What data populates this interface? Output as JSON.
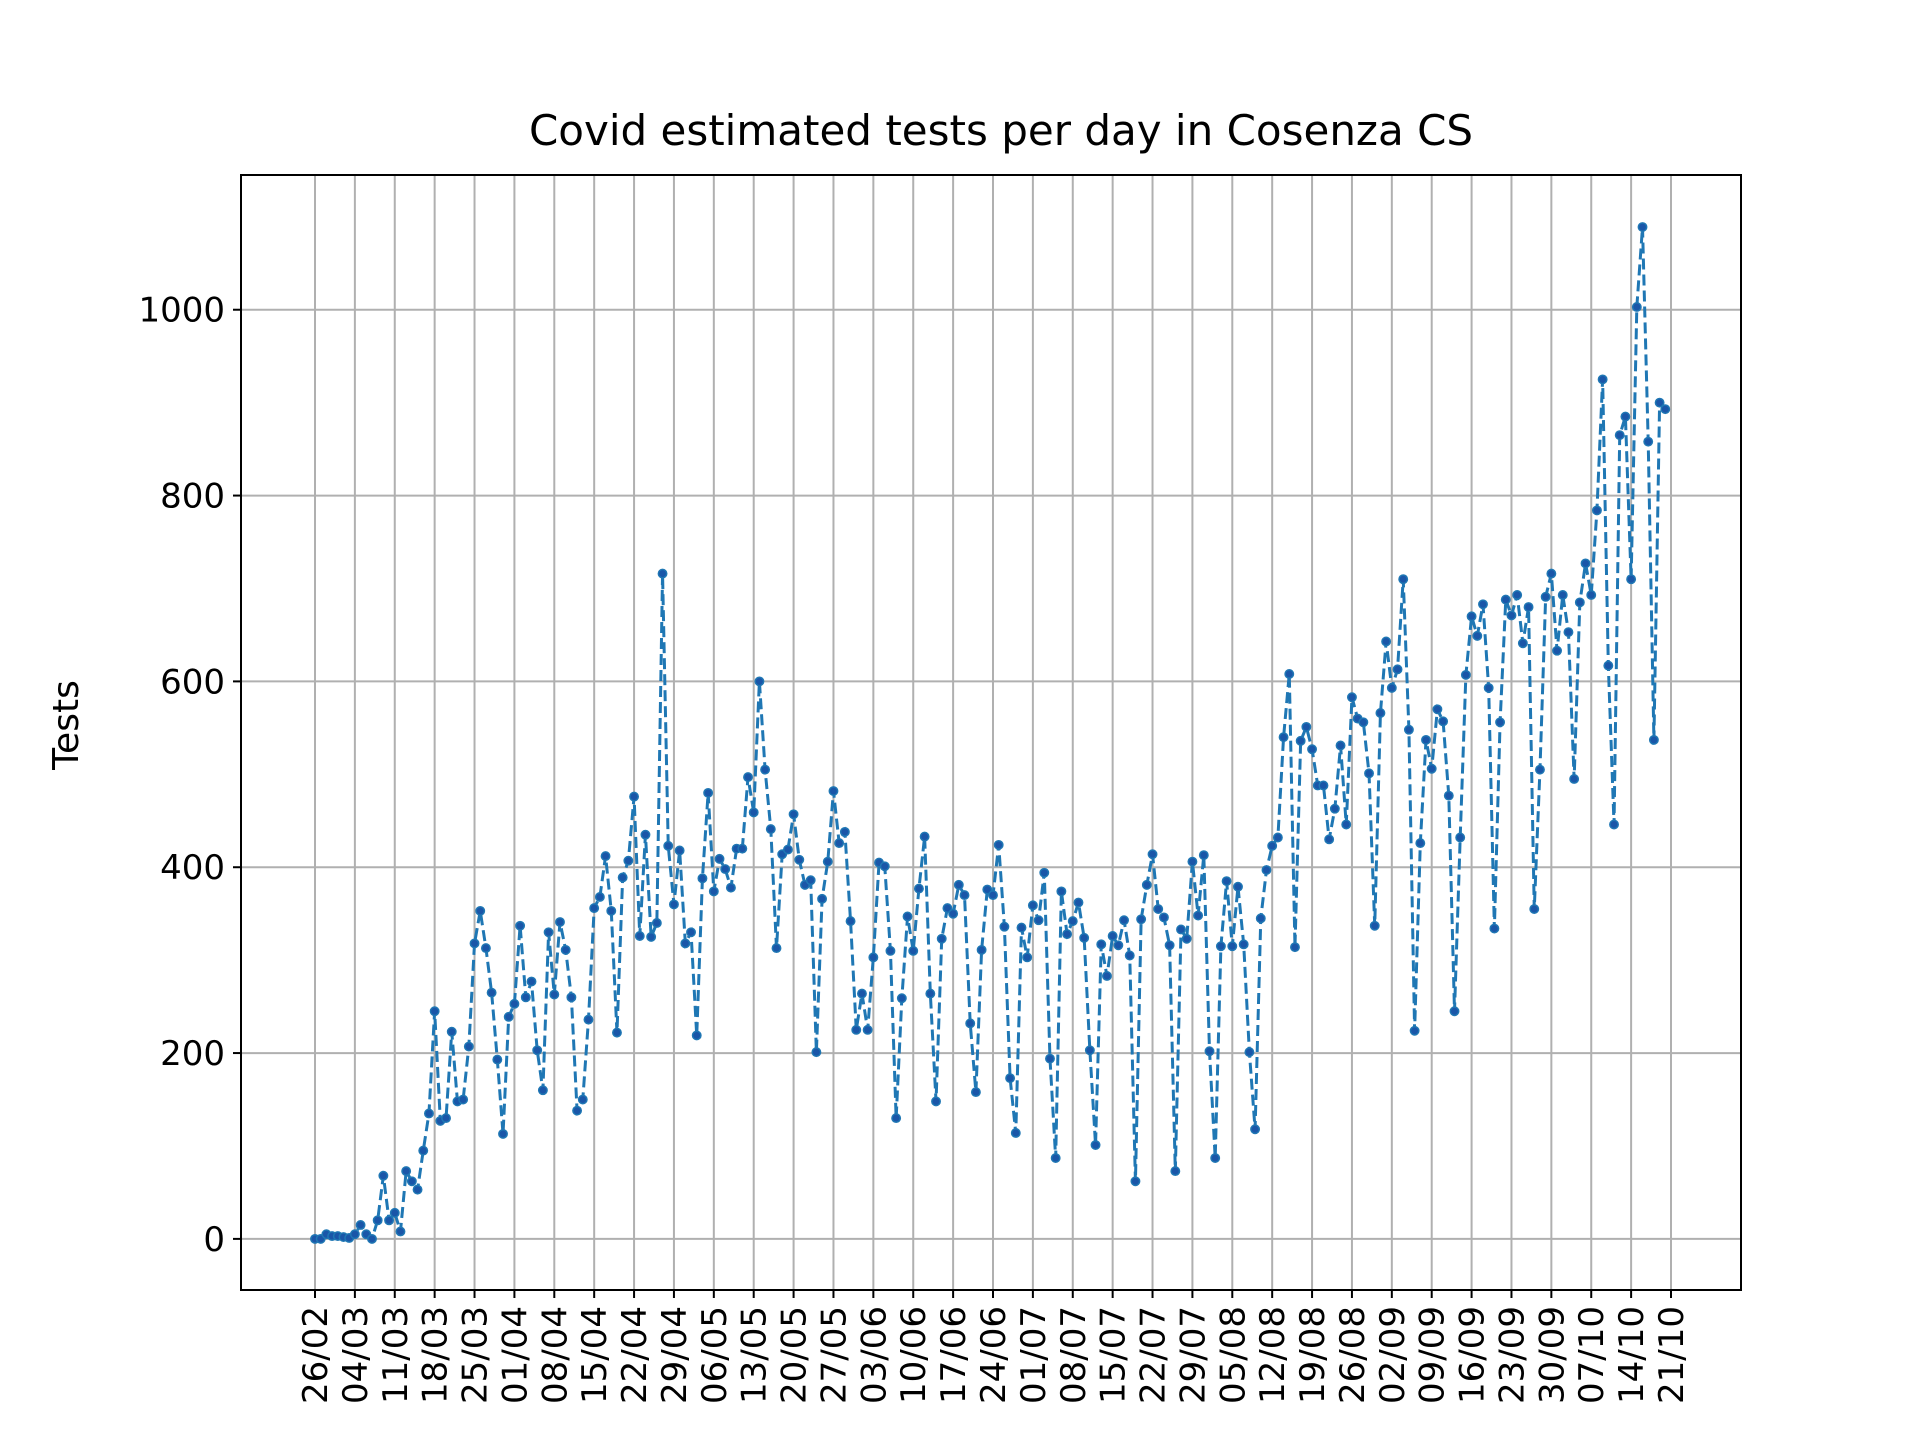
{
  "chart_data": {
    "type": "line",
    "title": "Covid estimated tests per day in Cosenza CS",
    "xlabel": "",
    "ylabel": "Tests",
    "ylim": [
      -55,
      1145
    ],
    "yticks": [
      0,
      200,
      400,
      600,
      800,
      1000
    ],
    "xticks": [
      "26/02",
      "04/03",
      "11/03",
      "18/03",
      "25/03",
      "01/04",
      "08/04",
      "15/04",
      "22/04",
      "29/04",
      "06/05",
      "13/05",
      "20/05",
      "27/05",
      "03/06",
      "10/06",
      "17/06",
      "24/06",
      "01/07",
      "08/07",
      "15/07",
      "22/07",
      "29/07",
      "05/08",
      "12/08",
      "19/08",
      "26/08",
      "02/09",
      "09/09",
      "16/09",
      "23/09",
      "30/09",
      "07/10",
      "14/10",
      "21/10"
    ],
    "grid": true,
    "colors": {
      "line": "#1f77b4",
      "marker": "#1a56a8",
      "grid": "#b0b0b0"
    },
    "series": [
      {
        "values": [
          0,
          0,
          5,
          3,
          3,
          2,
          1,
          5,
          15,
          5,
          0,
          20,
          68,
          20,
          28,
          8,
          73,
          62,
          53,
          95,
          135,
          245,
          127,
          130,
          223,
          148,
          150,
          207,
          318,
          353,
          313,
          265,
          193,
          113,
          239,
          253,
          337,
          260,
          277,
          203,
          160,
          330,
          263,
          341,
          311,
          260,
          138,
          150,
          236,
          356,
          368,
          412,
          353,
          222,
          389,
          407,
          476,
          326,
          435,
          325,
          340,
          716,
          423,
          360,
          418,
          318,
          330,
          219,
          388,
          480,
          374,
          409,
          398,
          378,
          420,
          420,
          497,
          459,
          600,
          505,
          441,
          313,
          414,
          419,
          457,
          408,
          381,
          386,
          201,
          366,
          406,
          482,
          426,
          438,
          342,
          225,
          264,
          225,
          303,
          405,
          401,
          310,
          130,
          259,
          347,
          310,
          377,
          433,
          264,
          148,
          323,
          356,
          350,
          381,
          370,
          232,
          158,
          311,
          376,
          370,
          424,
          336,
          173,
          114,
          335,
          303,
          359,
          343,
          394,
          194,
          87,
          374,
          328,
          342,
          362,
          324,
          203,
          101,
          317,
          283,
          326,
          316,
          343,
          305,
          62,
          344,
          381,
          414,
          355,
          346,
          316,
          73,
          333,
          323,
          406,
          348,
          413,
          202,
          87,
          315,
          385,
          315,
          379,
          317,
          201,
          118,
          345,
          397,
          423,
          432,
          540,
          608,
          314,
          536,
          551,
          527,
          488,
          488,
          430,
          463,
          531,
          446,
          583,
          560,
          556,
          501,
          337,
          566,
          643,
          593,
          613,
          710,
          548,
          224,
          426,
          537,
          506,
          570,
          557,
          477,
          245,
          432,
          607,
          670,
          649,
          683,
          593,
          334,
          556,
          688,
          671,
          693,
          641,
          680,
          355,
          505,
          691,
          716,
          633,
          693,
          653,
          495,
          685,
          727,
          693,
          784,
          925,
          617,
          446,
          865,
          885,
          710,
          1003,
          1089,
          858,
          537,
          900,
          893
        ]
      }
    ]
  }
}
